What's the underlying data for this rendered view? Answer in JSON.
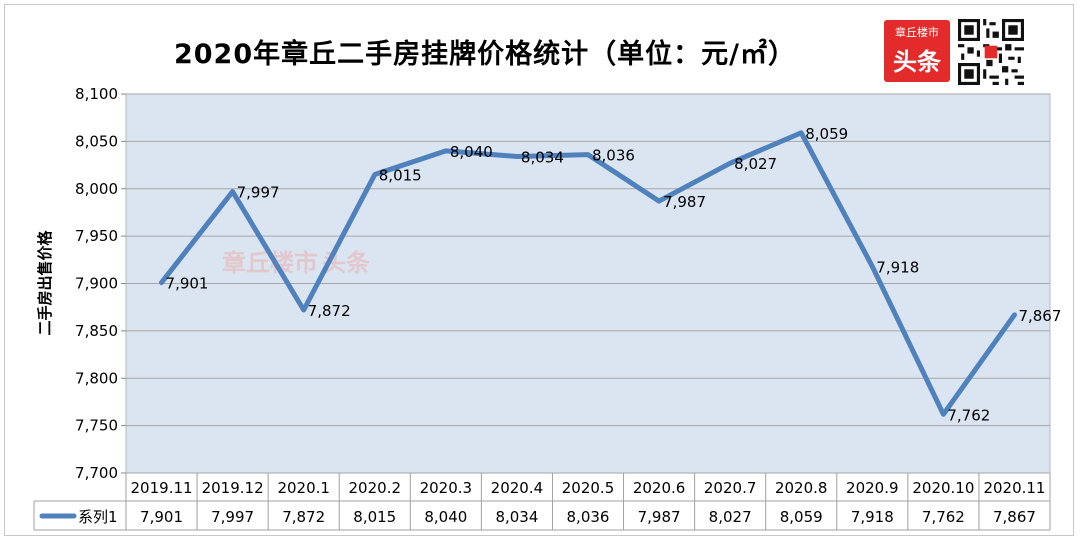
{
  "title": "2020年章丘二手房挂牌价格统计（单位：元/㎡）",
  "logo": {
    "top_text": "章丘楼市",
    "main_text": "头条"
  },
  "watermark": {
    "left_text": "章丘楼市",
    "right_text": "头条"
  },
  "colors": {
    "series": "#4f81bd",
    "plot_bg": "#dbe5f1",
    "logo_red": "#e32b2b"
  },
  "chart_data": {
    "type": "line",
    "ylabel": "二手房出售价格",
    "ylim": [
      7700,
      8100
    ],
    "yticks": [
      7700,
      7750,
      7800,
      7850,
      7900,
      7950,
      8000,
      8050,
      8100
    ],
    "ytick_labels": [
      "7,700",
      "7,750",
      "7,800",
      "7,850",
      "7,900",
      "7,950",
      "8,000",
      "8,050",
      "8,100"
    ],
    "categories": [
      "2019.11",
      "2019.12",
      "2020.1",
      "2020.2",
      "2020.3",
      "2020.4",
      "2020.5",
      "2020.6",
      "2020.7",
      "2020.8",
      "2020.9",
      "2020.10",
      "2020.11"
    ],
    "grid": true,
    "legend": "data-table",
    "series": [
      {
        "name": "系列1",
        "values": [
          7901,
          7997,
          7872,
          8015,
          8040,
          8034,
          8036,
          7987,
          8027,
          8059,
          7918,
          7762,
          7867
        ],
        "labels": [
          "7,901",
          "7,997",
          "7,872",
          "8,015",
          "8,040",
          "8,034",
          "8,036",
          "7,987",
          "8,027",
          "8,059",
          "7,918",
          "7,762",
          "7,867"
        ]
      }
    ]
  }
}
